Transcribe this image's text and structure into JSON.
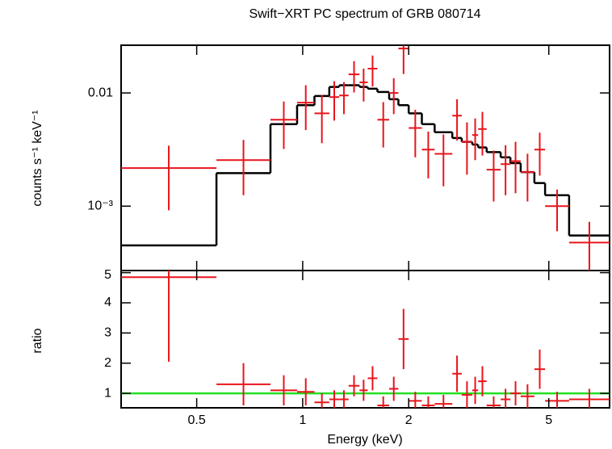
{
  "chart_data": {
    "type": "errorbar",
    "title": "Swift−XRT PC spectrum of GRB 080714",
    "xlabel": "Energy (keV)",
    "ylabel": "counts s⁻¹ keV⁻¹",
    "y2label": "ratio",
    "xscale": "log",
    "yscale": "log",
    "xlim": [
      0.305,
      7.44
    ],
    "xticks": [
      0.5,
      1,
      2,
      5
    ],
    "ylim": [
      0.00027,
      0.0264
    ],
    "yticks": [
      0.01,
      {
        "value": 0.001,
        "label": "10⁻³"
      }
    ],
    "y2lim": [
      0.52,
      5.07
    ],
    "y2ticks": [
      1,
      2,
      3,
      4,
      5
    ],
    "color": "#e8141b",
    "model_color": "#000000",
    "reference": 1,
    "reference_color": "#22e022",
    "x_lo": [
      0.305,
      0.569,
      0.81,
      0.964,
      1.08,
      1.19,
      1.27,
      1.35,
      1.45,
      1.53,
      1.63,
      1.76,
      1.87,
      2.0,
      2.18,
      2.37,
      2.66,
      2.83,
      3.03,
      3.15,
      3.33,
      3.65,
      3.89,
      4.16,
      4.55,
      4.88,
      5.71
    ],
    "x_hi": [
      0.569,
      0.81,
      0.964,
      1.08,
      1.19,
      1.27,
      1.35,
      1.45,
      1.53,
      1.63,
      1.76,
      1.87,
      2.0,
      2.18,
      2.37,
      2.66,
      2.83,
      3.03,
      3.15,
      3.33,
      3.65,
      3.89,
      4.16,
      4.55,
      4.88,
      5.71,
      7.44
    ],
    "values": [
      0.00217,
      0.00255,
      0.0058,
      0.0082,
      0.0066,
      0.0092,
      0.0095,
      0.0146,
      0.0124,
      0.0164,
      0.0058,
      0.01,
      0.0247,
      0.0049,
      0.00316,
      0.0029,
      0.0063,
      0.0037,
      0.00425,
      0.0048,
      0.0021,
      0.00235,
      0.0025,
      0.002,
      0.00316,
      0.001,
      0.000477
    ],
    "errors": [
      0.00125,
      0.0013,
      0.0026,
      0.0035,
      0.003,
      0.0035,
      0.003,
      0.0045,
      0.004,
      0.005,
      0.0025,
      0.0035,
      0.01,
      0.0022,
      0.0014,
      0.0014,
      0.0025,
      0.0018,
      0.0017,
      0.002,
      0.001,
      0.0011,
      0.0012,
      0.0009,
      0.0013,
      0.0004,
      0.00025
    ],
    "model": [
      0.00045,
      0.00196,
      0.0053,
      0.0078,
      0.0094,
      0.0113,
      0.0117,
      0.0117,
      0.0113,
      0.0109,
      0.0102,
      0.0088,
      0.0078,
      0.0066,
      0.0053,
      0.0045,
      0.004,
      0.0037,
      0.0035,
      0.0033,
      0.003,
      0.0027,
      0.0024,
      0.002,
      0.0016,
      0.00125,
      0.00055
    ],
    "ratio": [
      4.85,
      1.3,
      1.1,
      1.05,
      0.7,
      0.8,
      0.8,
      1.25,
      1.1,
      1.5,
      0.6,
      1.15,
      2.8,
      0.75,
      0.6,
      0.65,
      1.65,
      0.95,
      1.1,
      1.4,
      0.6,
      0.8,
      1.0,
      0.9,
      1.8,
      0.75,
      0.8
    ],
    "ratio_errors": [
      2.8,
      0.7,
      0.5,
      0.45,
      0.3,
      0.3,
      0.3,
      0.35,
      0.35,
      0.4,
      0.3,
      0.4,
      1.0,
      0.3,
      0.3,
      0.3,
      0.6,
      0.45,
      0.45,
      0.5,
      0.3,
      0.35,
      0.4,
      0.4,
      0.65,
      0.3,
      0.35
    ]
  }
}
